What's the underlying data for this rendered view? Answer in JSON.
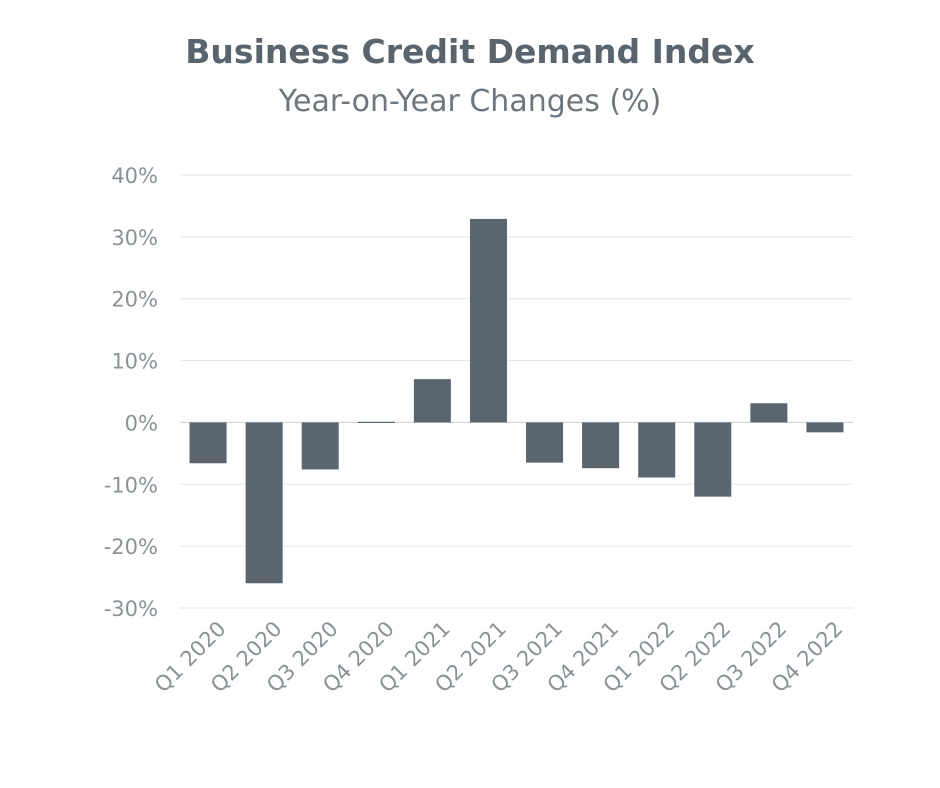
{
  "chart_data": {
    "type": "bar",
    "title": "Business Credit Demand Index",
    "subtitle": "Year-on-Year Changes (%)",
    "xlabel": "",
    "ylabel": "",
    "categories": [
      "Q1 2020",
      "Q2 2020",
      "Q3 2020",
      "Q4 2020",
      "Q1 2021",
      "Q2 2021",
      "Q3 2021",
      "Q4 2021",
      "Q1 2022",
      "Q2 2022",
      "Q3 2022",
      "Q4 2022"
    ],
    "values": [
      -6.6,
      -26.0,
      -7.6,
      0.1,
      7.0,
      32.9,
      -6.5,
      -7.4,
      -8.9,
      -12.0,
      3.1,
      -1.6
    ],
    "ylim": [
      -30,
      40
    ],
    "yticks": [
      40,
      30,
      20,
      10,
      0,
      -10,
      -20,
      -30
    ],
    "ytick_labels": [
      "40%",
      "30%",
      "20%",
      "10%",
      "0%",
      "-10%",
      "-20%",
      "-30%"
    ],
    "grid": true,
    "legend": "none",
    "colors": {
      "bar": "#5b656d",
      "grid": "#e3e5e7",
      "zero_line": "#c9cdd0",
      "text": "#8a9298"
    }
  }
}
